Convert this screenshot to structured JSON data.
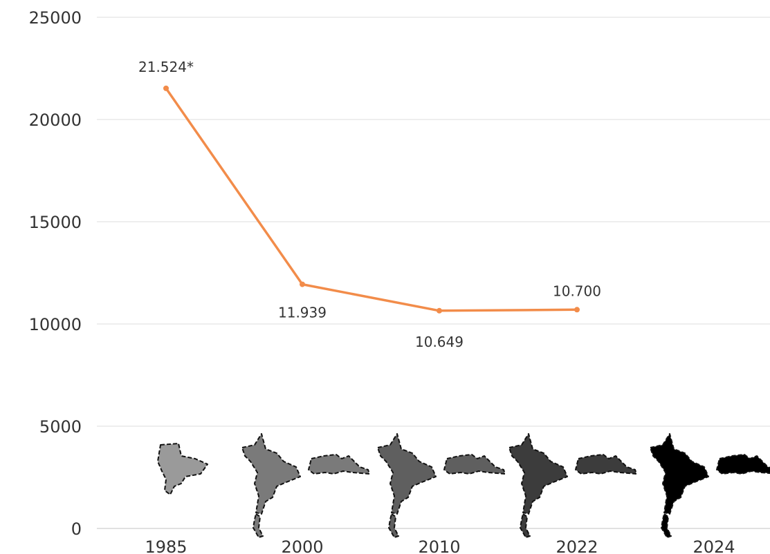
{
  "chart_data": {
    "type": "line",
    "title": "",
    "xlabel": "",
    "ylabel": "",
    "categories": [
      "1985",
      "2000",
      "2010",
      "2022",
      "2024"
    ],
    "series": [
      {
        "values": [
          21524,
          11939,
          10649,
          10700,
          null
        ],
        "data_labels": [
          "21.524*",
          "11.939",
          "10.649",
          "10.700",
          ""
        ],
        "color": "#f28c4a"
      }
    ],
    "ylim": [
      0,
      25000
    ],
    "yticks": [
      0,
      5000,
      10000,
      15000,
      20000,
      25000
    ],
    "grid": true,
    "legend": "none",
    "map_silhouettes": {
      "years": [
        "1985",
        "2000",
        "2010",
        "2022",
        "2024"
      ],
      "fill_colors": [
        "#9a9a9a",
        "#7a7a7a",
        "#5f5f5f",
        "#3c3c3c",
        "#000000"
      ],
      "outline": "dashed"
    }
  }
}
